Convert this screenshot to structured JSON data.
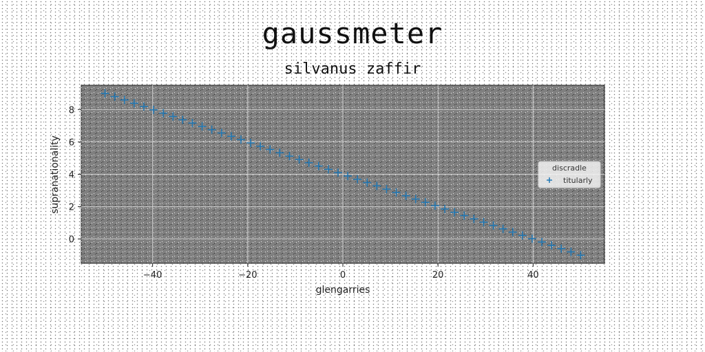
{
  "chart_data": {
    "type": "scatter",
    "title": "gaussmeter",
    "subtitle": "silvanus zaffir",
    "xlabel": "glengarries",
    "ylabel": "supranationality",
    "xlim": [
      -55,
      55
    ],
    "ylim": [
      -1.5,
      9.5
    ],
    "xticks": [
      -40,
      -20,
      0,
      20,
      40
    ],
    "yticks": [
      0,
      2,
      4,
      6,
      8
    ],
    "xtick_labels": [
      "−40",
      "−20",
      "0",
      "20",
      "40"
    ],
    "ytick_labels": [
      "0",
      "2",
      "4",
      "6",
      "8"
    ],
    "grid": true,
    "legend": {
      "title": "discradle",
      "position": "center-right"
    },
    "series": [
      {
        "name": "titularly",
        "marker": "+",
        "color": "#1f77b4",
        "x_start": -50,
        "x_end": 50,
        "count": 50,
        "y_start": 9.0,
        "y_end": -1.0
      }
    ],
    "plot_background": "#808080"
  }
}
